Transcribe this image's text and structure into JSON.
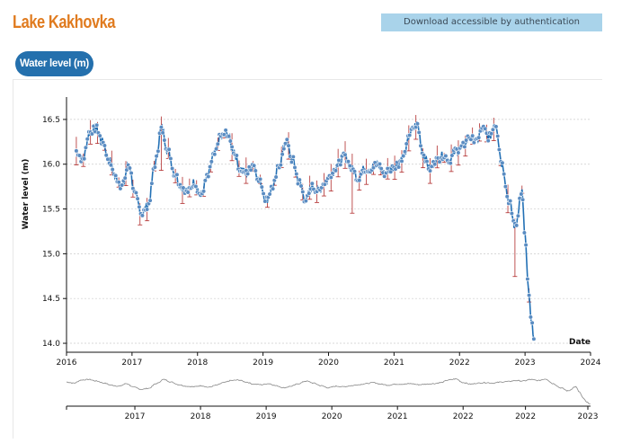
{
  "header": {
    "title": "Lake Kakhovka",
    "download_label": "Download accessible by authentication"
  },
  "tab": {
    "label": "Water level (m)"
  },
  "colors": {
    "title": "#e07b1f",
    "tab_bg": "#2470ad",
    "download_bg": "#a9d3ea",
    "marker_fill": "#5a8cc2",
    "line": "#2270b5",
    "error_bar": "#b02a2a",
    "overview_line": "#888888"
  },
  "chart_data": {
    "type": "scatter",
    "title": "",
    "xlabel": "Date",
    "ylabel": "Water level (m)",
    "xlim": [
      2016.0,
      2024.0
    ],
    "ylim": [
      13.9,
      16.75
    ],
    "x_ticks": [
      "2016",
      "2017",
      "2018",
      "2019",
      "2020",
      "2021",
      "2022",
      "2023",
      "2024"
    ],
    "y_ticks": [
      "14.0",
      "14.5",
      "15.0",
      "15.5",
      "16.0",
      "16.5"
    ],
    "grid": "horizontal",
    "series": [
      {
        "name": "Water level (m)",
        "x": [
          2016.15,
          2016.25,
          2016.35,
          2016.45,
          2016.55,
          2016.65,
          2016.75,
          2016.85,
          2016.95,
          2017.05,
          2017.15,
          2017.25,
          2017.35,
          2017.45,
          2017.55,
          2017.65,
          2017.75,
          2017.85,
          2017.95,
          2018.05,
          2018.15,
          2018.25,
          2018.35,
          2018.45,
          2018.55,
          2018.65,
          2018.75,
          2018.85,
          2018.95,
          2019.05,
          2019.15,
          2019.25,
          2019.35,
          2019.45,
          2019.55,
          2019.65,
          2019.75,
          2019.85,
          2019.95,
          2020.05,
          2020.15,
          2020.25,
          2020.35,
          2020.45,
          2020.55,
          2020.65,
          2020.75,
          2020.85,
          2020.95,
          2021.05,
          2021.15,
          2021.25,
          2021.35,
          2021.45,
          2021.55,
          2021.65,
          2021.75,
          2021.85,
          2021.95,
          2022.05,
          2022.15,
          2022.25,
          2022.35,
          2022.45,
          2022.55,
          2022.65,
          2022.75,
          2022.85,
          2022.95,
          2023.0,
          2023.05,
          2023.1,
          2023.15
        ],
        "values": [
          16.15,
          16.05,
          16.35,
          16.4,
          16.25,
          16.05,
          15.85,
          15.75,
          16.0,
          15.65,
          15.45,
          15.55,
          16.0,
          16.4,
          16.15,
          15.9,
          15.75,
          15.7,
          15.8,
          15.65,
          15.85,
          16.1,
          16.3,
          16.35,
          16.15,
          15.95,
          15.9,
          16.0,
          15.8,
          15.6,
          15.75,
          16.0,
          16.25,
          16.05,
          15.8,
          15.6,
          15.75,
          15.7,
          15.8,
          15.9,
          16.0,
          16.1,
          15.95,
          15.85,
          15.95,
          15.95,
          16.0,
          15.9,
          15.95,
          16.0,
          16.1,
          16.35,
          16.45,
          16.1,
          15.95,
          16.05,
          16.1,
          16.05,
          16.15,
          16.2,
          16.3,
          16.25,
          16.4,
          16.3,
          16.45,
          16.0,
          15.6,
          15.3,
          15.7,
          15.2,
          14.6,
          14.2,
          14.05
        ]
      }
    ]
  },
  "overview": {
    "x_ticks": [
      "2017",
      "2018",
      "2019",
      "2020",
      "2021",
      "2022",
      "2022",
      "2023"
    ]
  }
}
